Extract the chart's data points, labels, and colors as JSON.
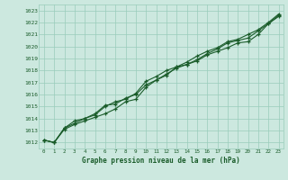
{
  "xlabel": "Graphe pression niveau de la mer (hPa)",
  "bg_color": "#cce8df",
  "grid_color": "#99ccbb",
  "line_color": "#1a5c2a",
  "x_values": [
    0,
    1,
    2,
    3,
    4,
    5,
    6,
    7,
    8,
    9,
    10,
    11,
    12,
    13,
    14,
    15,
    16,
    17,
    18,
    19,
    20,
    21,
    22,
    23
  ],
  "line1": [
    1012.2,
    1012.0,
    1013.1,
    1013.5,
    1013.8,
    1014.1,
    1014.4,
    1014.8,
    1015.4,
    1015.6,
    1016.6,
    1017.2,
    1017.6,
    1018.3,
    1018.5,
    1018.8,
    1019.3,
    1019.6,
    1019.9,
    1020.3,
    1020.4,
    1021.0,
    1021.9,
    1022.5
  ],
  "line2": [
    1012.2,
    1012.0,
    1013.2,
    1013.8,
    1014.0,
    1014.4,
    1015.1,
    1015.2,
    1015.7,
    1016.0,
    1016.8,
    1017.2,
    1017.7,
    1018.2,
    1018.5,
    1018.9,
    1019.4,
    1019.8,
    1020.3,
    1020.5,
    1020.7,
    1021.3,
    1021.9,
    1022.6
  ],
  "line3": [
    1012.2,
    1012.0,
    1013.2,
    1013.6,
    1014.0,
    1014.3,
    1015.0,
    1015.4,
    1015.6,
    1016.1,
    1017.1,
    1017.5,
    1018.0,
    1018.3,
    1018.7,
    1019.2,
    1019.6,
    1019.9,
    1020.4,
    1020.6,
    1021.0,
    1021.4,
    1022.0,
    1022.7
  ],
  "ylim": [
    1011.5,
    1023.5
  ],
  "yticks": [
    1012,
    1013,
    1014,
    1015,
    1016,
    1017,
    1018,
    1019,
    1020,
    1021,
    1022,
    1023
  ],
  "xlim": [
    -0.5,
    23.5
  ],
  "xticks": [
    0,
    1,
    2,
    3,
    4,
    5,
    6,
    7,
    8,
    9,
    10,
    11,
    12,
    13,
    14,
    15,
    16,
    17,
    18,
    19,
    20,
    21,
    22,
    23
  ]
}
